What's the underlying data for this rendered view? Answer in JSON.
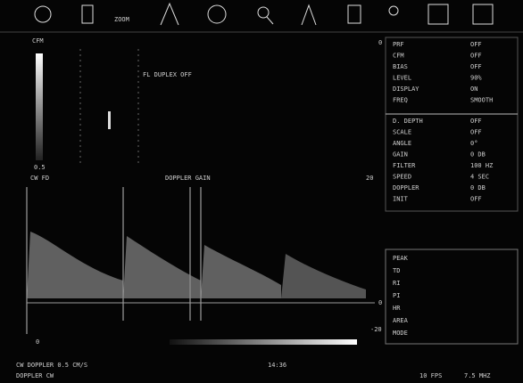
{
  "toolbar": {
    "zoom_label": "ZOOM"
  },
  "image_panel": {
    "header": "CFM",
    "mode_text": "FL DUPLEX OFF",
    "depth_label": "0.5",
    "footer_left": "CW FD",
    "footer_mid": "DOPPLER GAIN"
  },
  "doppler_panel": {
    "scale_top": "20",
    "scale_mid": "0",
    "scale_bottom": "-20",
    "scale_left": "0"
  },
  "settings_top": {
    "scale_label": "0",
    "rows": [
      [
        "PRF",
        "OFF"
      ],
      [
        "CFM",
        "OFF"
      ],
      [
        "BIAS",
        "OFF"
      ],
      [
        "LEVEL",
        "90%"
      ],
      [
        "DISPLAY",
        "ON"
      ],
      [
        "FREQ",
        "SMOOTH"
      ]
    ]
  },
  "settings_bottom": {
    "rows": [
      [
        "D. DEPTH",
        "OFF"
      ],
      [
        "SCALE",
        "OFF"
      ],
      [
        "ANGLE",
        "0°"
      ],
      [
        "GAIN",
        "0 DB"
      ],
      [
        "FILTER",
        "100 HZ"
      ],
      [
        "SPEED",
        "4 SEC"
      ],
      [
        "DOPPLER",
        "0 DB"
      ],
      [
        "INIT",
        "OFF"
      ]
    ]
  },
  "measure_box": {
    "rows": [
      "PEAK",
      "TD",
      "RI",
      "PI",
      "HR",
      "AREA",
      "MODE"
    ]
  },
  "status": {
    "line1": "CW DOPPLER 0.5 CM/S",
    "line2": "DOPPLER CW",
    "time": "14:36",
    "fps": "10 FPS",
    "freq": "7.5 MHZ"
  }
}
